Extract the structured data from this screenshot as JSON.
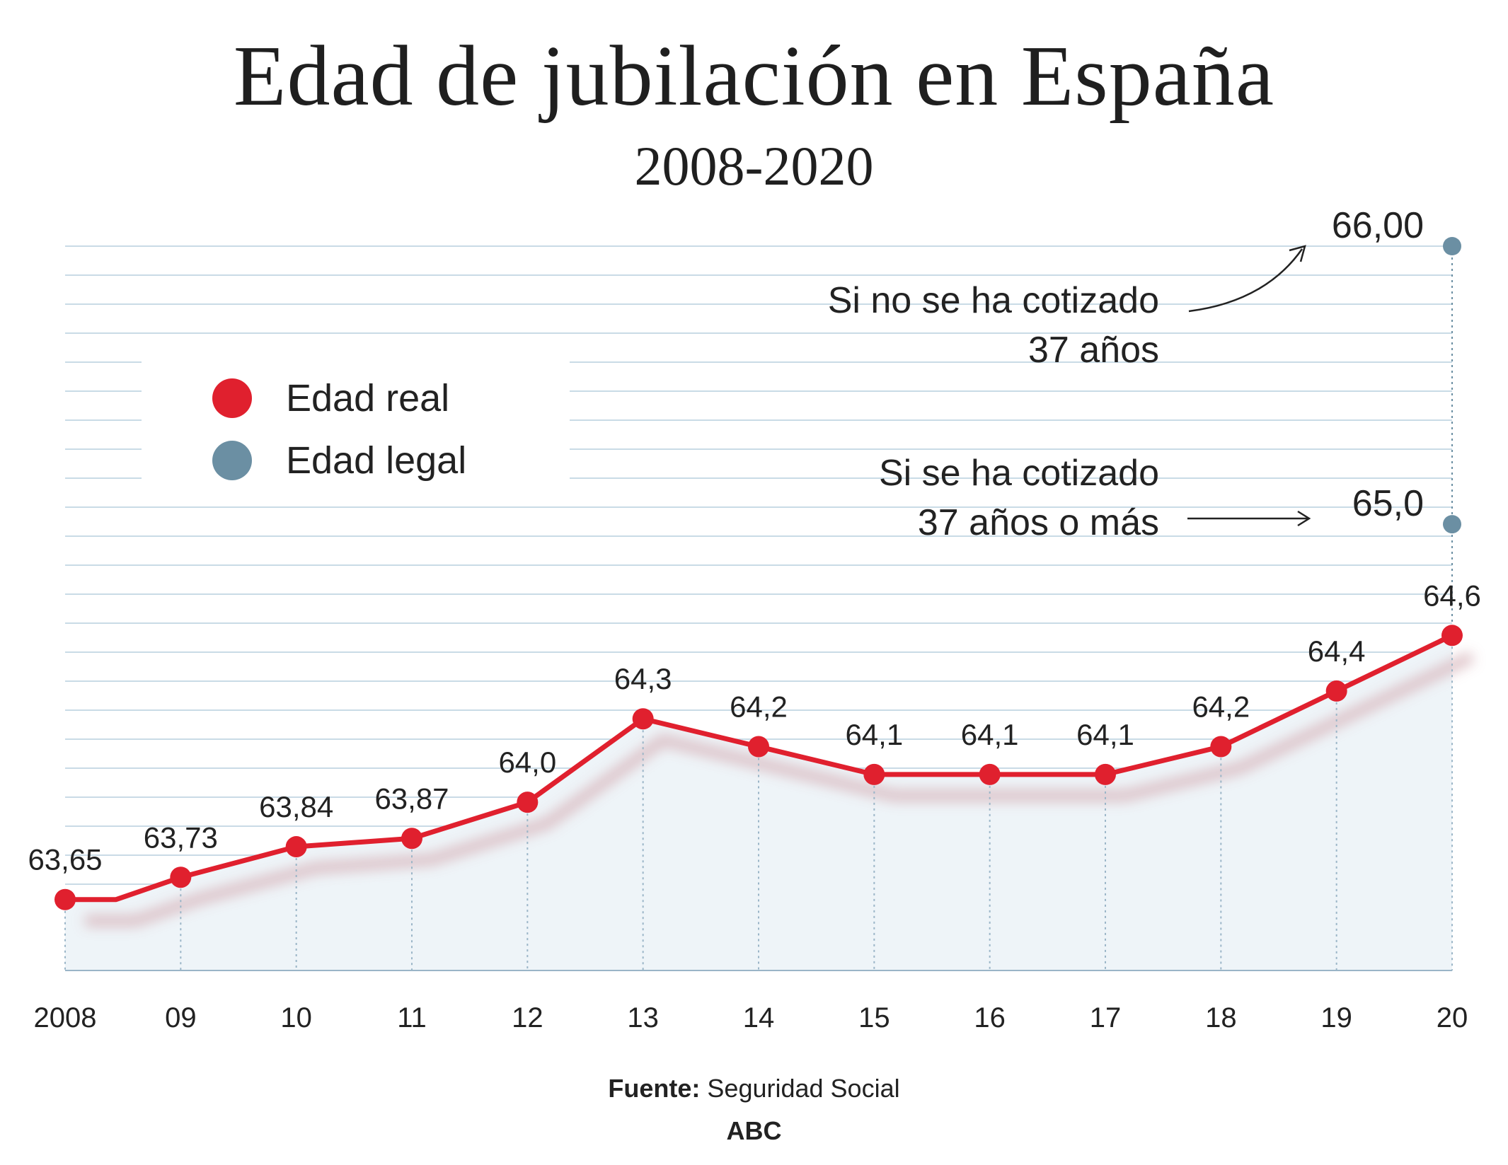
{
  "title": "Edad de jubilación en España",
  "subtitle": "2008-2020",
  "legend": {
    "real": "Edad real",
    "legal": "Edad legal"
  },
  "colors": {
    "real": "#e0202e",
    "legal": "#6b8fa3",
    "grid": "#c9dbe6",
    "area": "#eef4f8"
  },
  "annotations": {
    "no37_line1": "Si no se ha cotizado",
    "no37_line2": "37 años",
    "yes37_line1": "Si se ha cotizado",
    "yes37_line2": "37 años o más"
  },
  "source": {
    "label": "Fuente:",
    "text": "Seguridad Social"
  },
  "brand": "ABC",
  "chart_data": {
    "type": "line",
    "x_labels": [
      "2008",
      "09",
      "10",
      "11",
      "12",
      "13",
      "14",
      "15",
      "16",
      "17",
      "18",
      "19",
      "20"
    ],
    "series": [
      {
        "name": "Edad real",
        "values": [
          63.65,
          63.73,
          63.84,
          63.87,
          64.0,
          64.3,
          64.2,
          64.1,
          64.1,
          64.1,
          64.2,
          64.4,
          64.6
        ],
        "labels": [
          "63,65",
          "63,73",
          "63,84",
          "63,87",
          "64,0",
          "64,3",
          "64,2",
          "64,1",
          "64,1",
          "64,1",
          "64,2",
          "64,4",
          "64,6"
        ]
      },
      {
        "name": "Edad legal",
        "points": [
          {
            "x": "20",
            "value": 66.0,
            "label": "66,00"
          },
          {
            "x": "20",
            "value": 65.0,
            "label": "65,0"
          }
        ]
      }
    ],
    "ylim": [
      63.4,
      66.0
    ],
    "grid": true
  }
}
